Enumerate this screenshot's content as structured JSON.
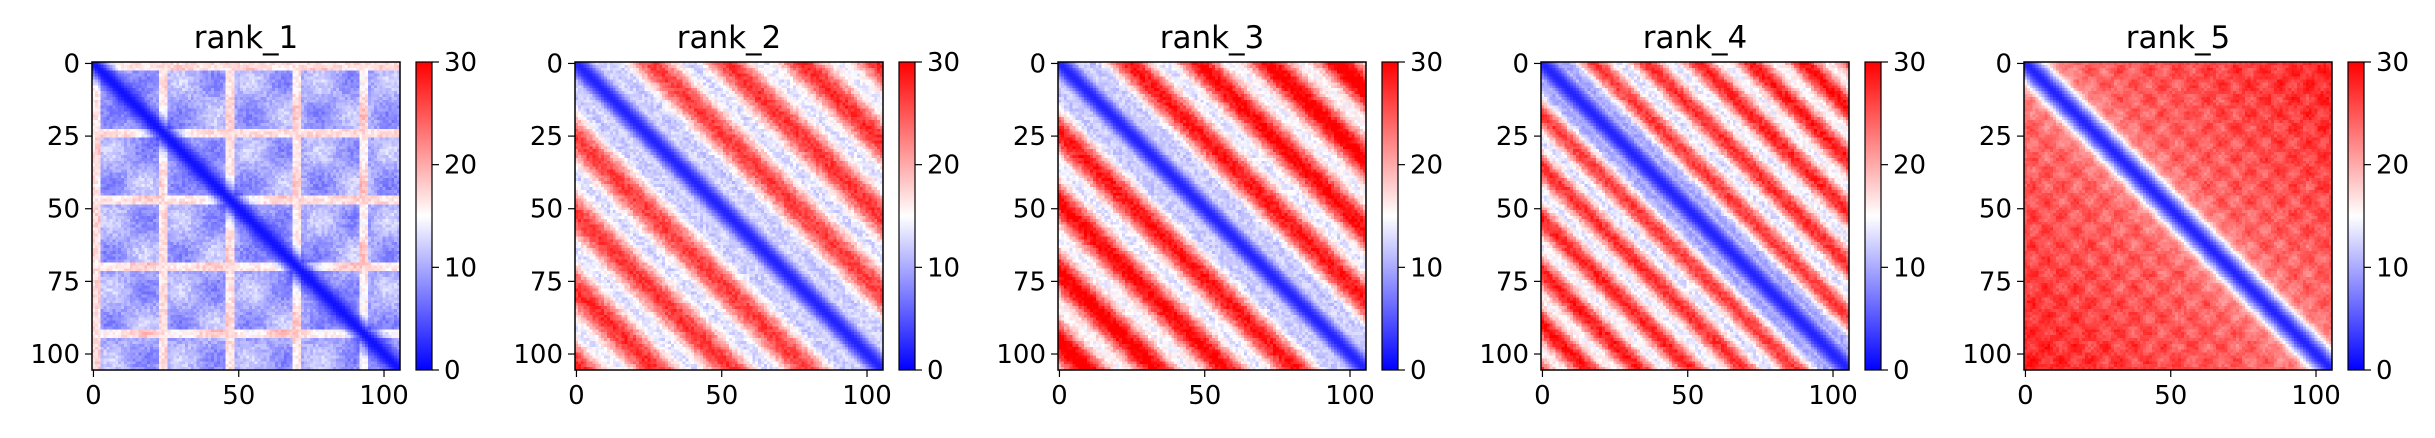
{
  "colormap": {
    "name": "bwr",
    "low": "#0000ff",
    "mid": "#ffffff",
    "high": "#ff0000"
  },
  "chart_data": [
    {
      "type": "heatmap",
      "title": "rank_1",
      "matrix_size": 106,
      "xlim": [
        0,
        105
      ],
      "ylim": [
        105,
        0
      ],
      "vlim": [
        0,
        30
      ],
      "xticks": [
        0,
        50,
        100
      ],
      "yticks": [
        0,
        25,
        50,
        75,
        100
      ],
      "cbar_ticks": [
        0,
        10,
        20,
        30
      ],
      "pattern": {
        "base": 10,
        "near_diagonal": 1,
        "diag_width": 4,
        "band_period": 23,
        "band_boost": 7,
        "block_period": 24,
        "block_amp": 2.5,
        "stripe_period": 0,
        "stripe_amp": 0,
        "far_boost": 0,
        "noise": 1.5
      }
    },
    {
      "type": "heatmap",
      "title": "rank_2",
      "matrix_size": 106,
      "xlim": [
        0,
        105
      ],
      "ylim": [
        105,
        0
      ],
      "vlim": [
        0,
        30
      ],
      "xticks": [
        0,
        50,
        100
      ],
      "yticks": [
        0,
        25,
        50,
        75,
        100
      ],
      "cbar_ticks": [
        0,
        10,
        20,
        30
      ],
      "pattern": {
        "base": 19,
        "near_diagonal": 2,
        "diag_width": 5,
        "band_period": 0,
        "band_boost": 0,
        "block_period": 0,
        "block_amp": 0,
        "stripe_period": 26,
        "stripe_amp": 7,
        "far_boost": 2,
        "noise": 1.8
      }
    },
    {
      "type": "heatmap",
      "title": "rank_3",
      "matrix_size": 106,
      "xlim": [
        0,
        105
      ],
      "ylim": [
        105,
        0
      ],
      "vlim": [
        0,
        30
      ],
      "xticks": [
        0,
        50,
        100
      ],
      "yticks": [
        0,
        25,
        50,
        75,
        100
      ],
      "cbar_ticks": [
        0,
        10,
        20,
        30
      ],
      "pattern": {
        "base": 20,
        "near_diagonal": 2,
        "diag_width": 5,
        "band_period": 0,
        "band_boost": 0,
        "block_period": 0,
        "block_amp": 0,
        "stripe_period": 24,
        "stripe_amp": 8,
        "far_boost": 4,
        "noise": 1.8
      }
    },
    {
      "type": "heatmap",
      "title": "rank_4",
      "matrix_size": 106,
      "xlim": [
        0,
        105
      ],
      "ylim": [
        105,
        0
      ],
      "vlim": [
        0,
        30
      ],
      "xticks": [
        0,
        50,
        100
      ],
      "yticks": [
        0,
        25,
        50,
        75,
        100
      ],
      "cbar_ticks": [
        0,
        10,
        20,
        30
      ],
      "pattern": {
        "base": 19,
        "near_diagonal": 2,
        "diag_width": 5,
        "band_period": 0,
        "band_boost": 0,
        "block_period": 0,
        "block_amp": 0,
        "stripe_period": 18,
        "stripe_amp": 7,
        "far_boost": 4,
        "noise": 1.8
      }
    },
    {
      "type": "heatmap",
      "title": "rank_5",
      "matrix_size": 106,
      "xlim": [
        0,
        105
      ],
      "ylim": [
        105,
        0
      ],
      "vlim": [
        0,
        30
      ],
      "xticks": [
        0,
        50,
        100
      ],
      "yticks": [
        0,
        25,
        50,
        75,
        100
      ],
      "cbar_ticks": [
        0,
        10,
        20,
        30
      ],
      "pattern": {
        "base": 23,
        "near_diagonal": 2,
        "diag_width": 5,
        "band_period": 0,
        "band_boost": 0,
        "block_period": 10,
        "block_amp": 2,
        "stripe_period": 0,
        "stripe_amp": 0,
        "far_boost": 5,
        "noise": 1.2
      }
    }
  ]
}
